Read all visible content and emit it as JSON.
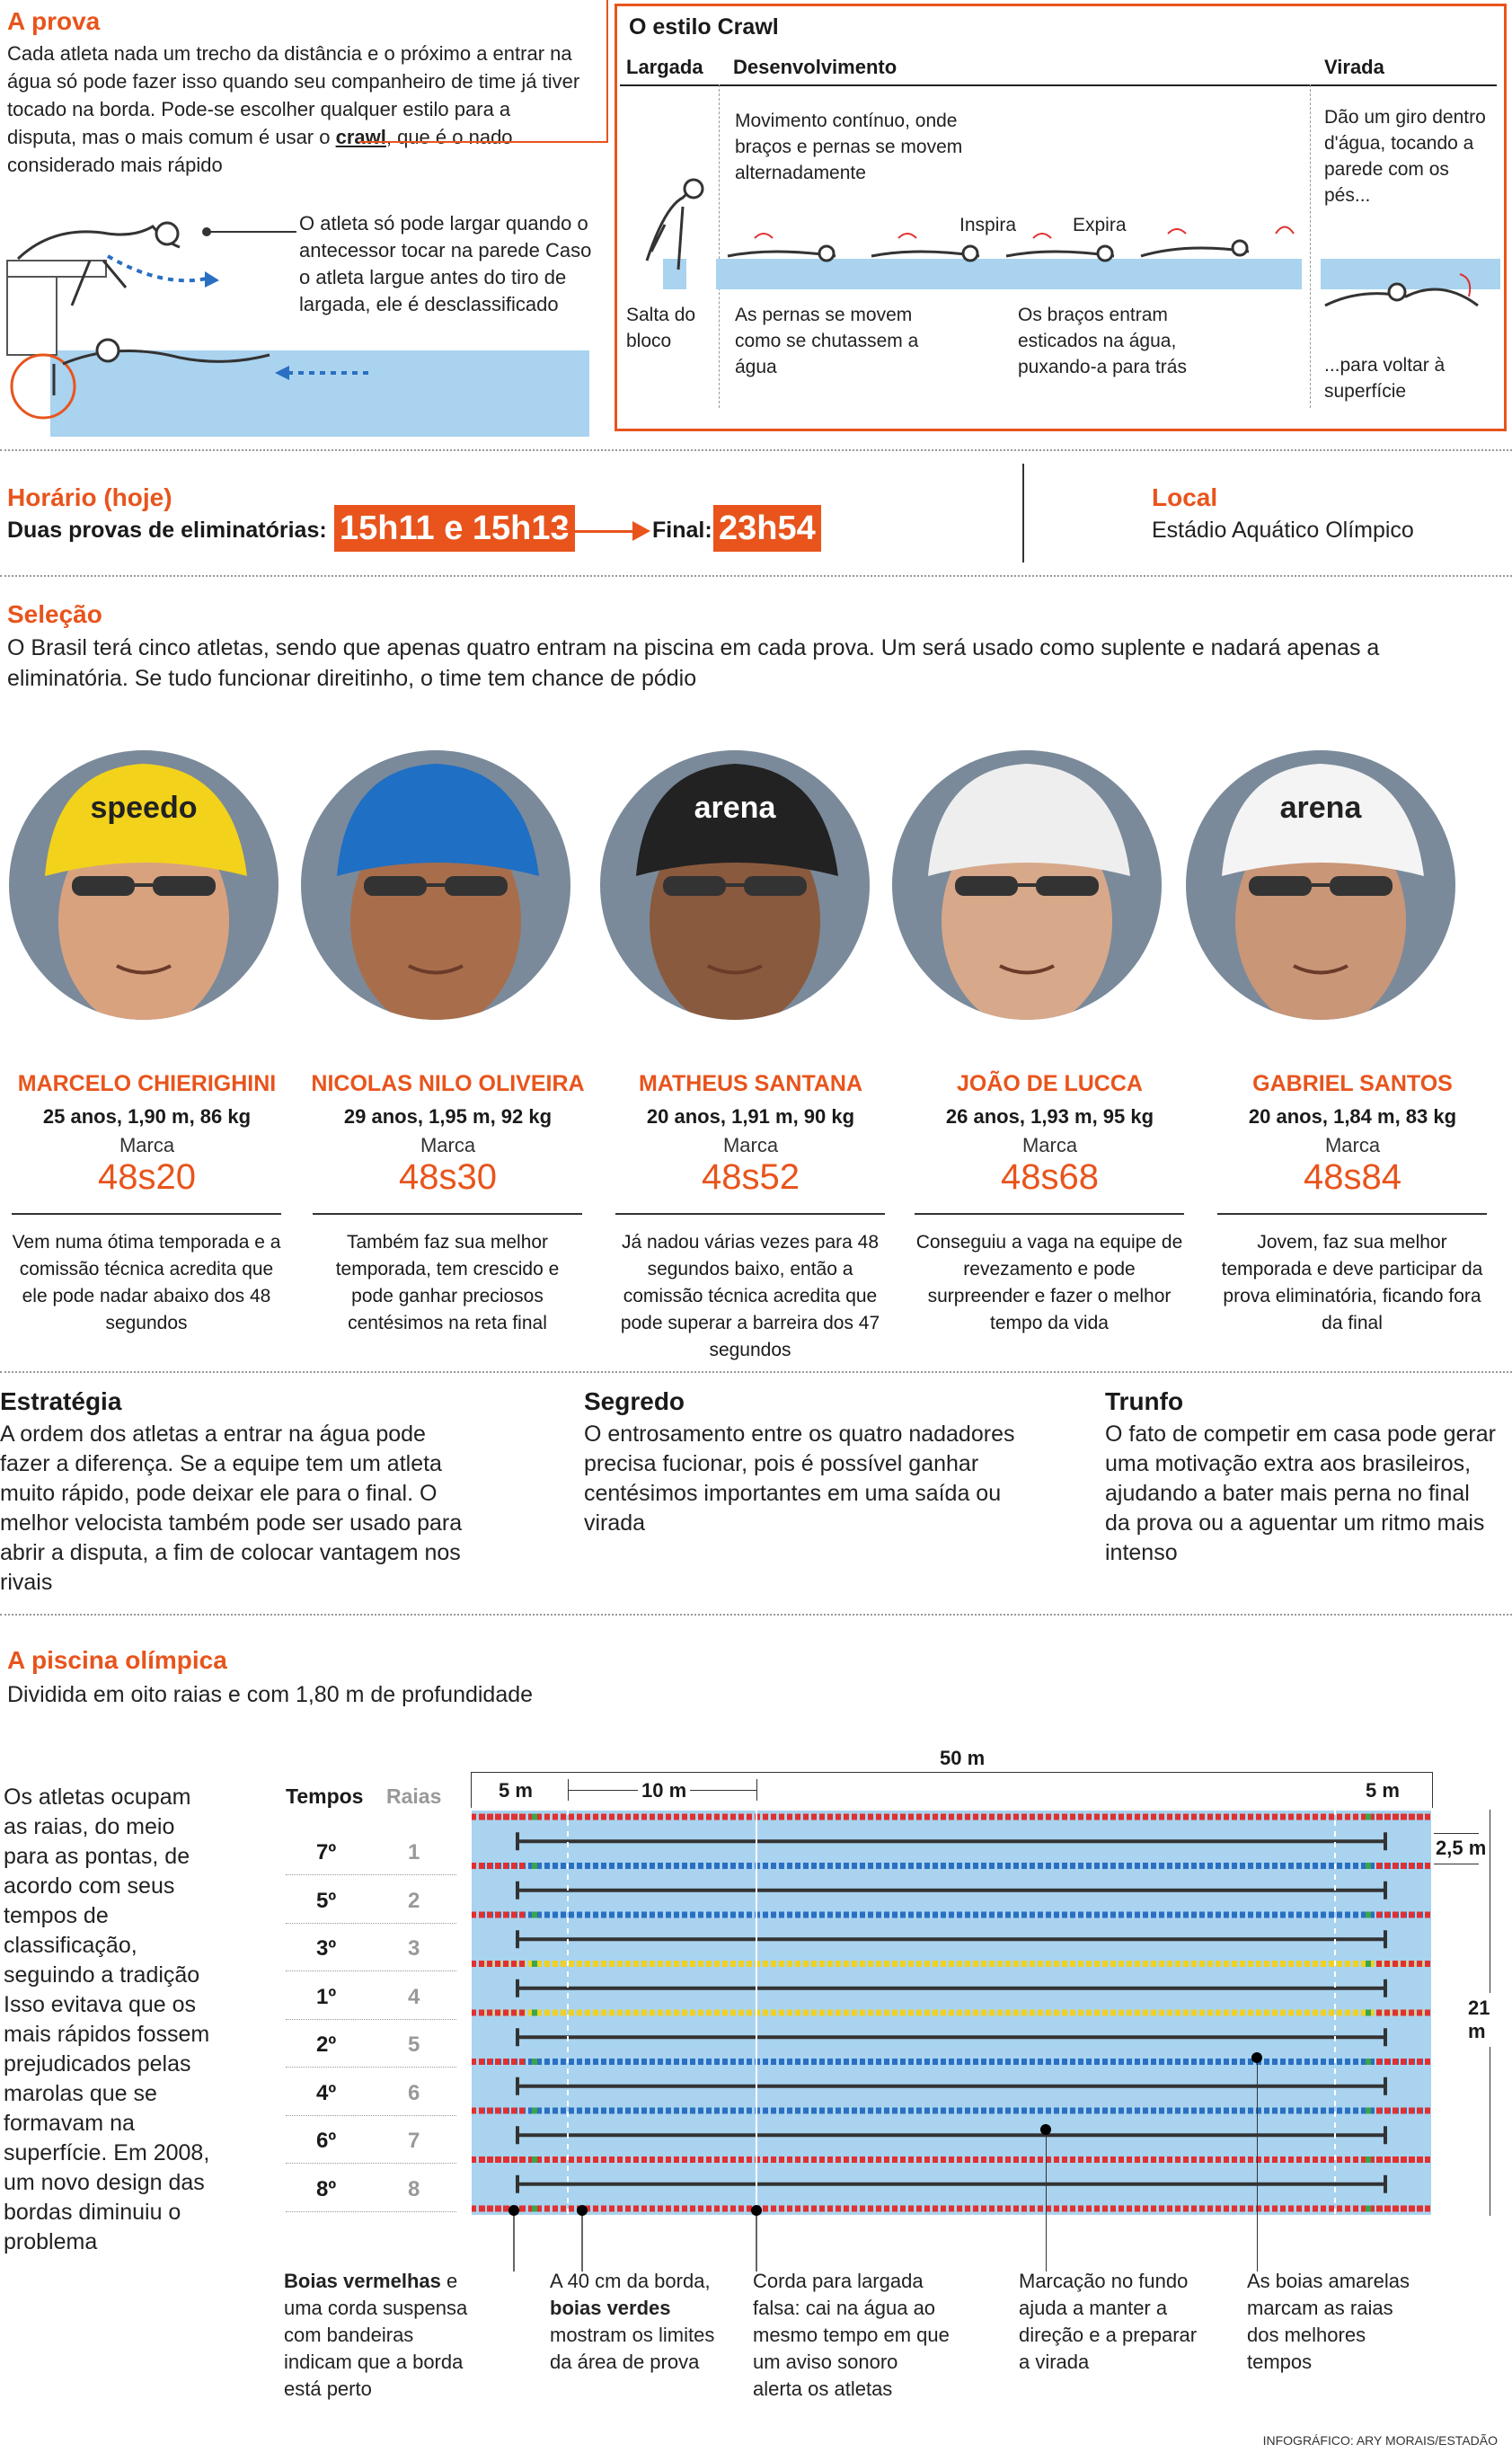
{
  "prova": {
    "title": "A prova",
    "text_a": "Cada atleta nada um trecho da distância e o próximo a entrar na água só pode fazer isso quando seu companheiro de time já tiver tocado na borda. Pode-se escolher qualquer estilo para a disputa, mas o mais comum é usar o ",
    "text_bold": "crawl",
    "text_b": ", que é o nado considerado mais rápido",
    "caption": "O atleta só pode largar quando o antecessor tocar na parede Caso o atleta largue antes do tiro de largada, ele é desclassificado"
  },
  "crawl": {
    "title": "O estilo Crawl",
    "col_largada": "Largada",
    "col_desenvolvimento": "Desenvolvimento",
    "col_virada": "Virada",
    "movimento": "Movimento contínuo, onde braços e pernas se movem alternadamente",
    "inspira": "Inspira",
    "expira": "Expira",
    "salta": "Salta do bloco",
    "pernas": "As pernas se movem como se chutassem a água",
    "bracos": "Os braços entram esticados na água, puxando-a para trás",
    "giro": "Dão um giro dentro d'água, tocando a parede com os pés...",
    "voltar": "...para voltar à superfície"
  },
  "horario": {
    "title": "Horário (hoje)",
    "label": "Duas provas de eliminatórias:",
    "times": "15h11 e 15h13",
    "final_label": "Final:",
    "final_time": "23h54"
  },
  "local": {
    "title": "Local",
    "value": "Estádio Aquático Olímpico"
  },
  "selecao": {
    "title": "Seleção",
    "text": "O Brasil terá cinco atletas, sendo que apenas quatro entram na piscina em cada prova. Um será usado como suplente e nadará apenas a eliminatória. Se tudo funcionar direitinho, o time tem chance de pódio"
  },
  "athletes": [
    {
      "name": "MARCELO CHIERIGHINI",
      "stats": "25 anos, 1,90 m, 86 kg",
      "marca": "Marca",
      "time": "48s20",
      "desc": "Vem numa ótima temporada e a comissão técnica acredita que ele pode nadar abaixo dos 48 segundos",
      "cap": "speedo",
      "capcolor": "#f2d21b",
      "skin": "#d9a27f"
    },
    {
      "name": "NICOLAS NILO OLIVEIRA",
      "stats": "29 anos, 1,95 m, 92 kg",
      "marca": "Marca",
      "time": "48s30",
      "desc": "Também faz sua melhor temporada, tem crescido e pode ganhar preciosos centésimos na reta final",
      "cap": "",
      "capcolor": "#1f6fc4",
      "skin": "#a86e4c"
    },
    {
      "name": "MATHEUS SANTANA",
      "stats": "20 anos, 1,91 m, 90 kg",
      "marca": "Marca",
      "time": "48s52",
      "desc": "Já nadou várias vezes para 48 segundos baixo, então a comissão técnica acredita que pode superar a barreira dos 47 segundos",
      "cap": "arena",
      "capcolor": "#222222",
      "skin": "#8a5a3e"
    },
    {
      "name": "JOÃO DE LUCCA",
      "stats": "26 anos, 1,93 m, 95 kg",
      "marca": "Marca",
      "time": "48s68",
      "desc": "Conseguiu a vaga na equipe de revezamento e pode surpreender e fazer o melhor tempo da vida",
      "cap": "",
      "capcolor": "#eeeeee",
      "skin": "#d8a88a"
    },
    {
      "name": "GABRIEL SANTOS",
      "stats": "20 anos, 1,84 m, 83 kg",
      "marca": "Marca",
      "time": "48s84",
      "desc": "Jovem, faz sua melhor temporada e deve participar da prova eliminatória, ficando fora da final",
      "cap": "arena",
      "capcolor": "#f4f4f4",
      "skin": "#c99678"
    }
  ],
  "estrategia": {
    "title": "Estratégia",
    "text": "A ordem dos atletas a entrar na água pode fazer a diferença. Se a equipe tem um atleta muito rápido, pode deixar ele para o final. O melhor velocista também pode ser usado para abrir a disputa, a fim de colocar vantagem nos rivais"
  },
  "segredo": {
    "title": "Segredo",
    "text": "O entrosamento entre os quatro nadadores precisa fucionar, pois é possível ganhar centésimos importantes em uma saída ou virada"
  },
  "trunfo": {
    "title": "Trunfo",
    "text": "O fato de competir em casa pode gerar uma motivação extra aos brasileiros, ajudando a bater mais perna no final da prova ou a aguentar um ritmo mais intenso"
  },
  "piscina": {
    "title": "A piscina olímpica",
    "subtitle": "Dividida em oito raias e com 1,80 m de profundidade",
    "side_text": "Os atletas ocupam as raias, do meio para as pontas, de acordo com seus tempos de classificação, seguindo a tradição Isso evitava que os mais rápidos fossem prejudicados pelas marolas que se formavam na superfície. Em 2008, um novo design das bordas diminuiu o problema",
    "col_tempos": "Tempos",
    "col_raias": "Raias",
    "rows": [
      {
        "tempo": "7º",
        "raia": "1"
      },
      {
        "tempo": "5º",
        "raia": "2"
      },
      {
        "tempo": "3º",
        "raia": "3"
      },
      {
        "tempo": "1º",
        "raia": "4"
      },
      {
        "tempo": "2º",
        "raia": "5"
      },
      {
        "tempo": "4º",
        "raia": "6"
      },
      {
        "tempo": "6º",
        "raia": "7"
      },
      {
        "tempo": "8º",
        "raia": "8"
      }
    ],
    "dim_50": "50 m",
    "dim_5a": "5 m",
    "dim_10": "10 m",
    "dim_5b": "5 m",
    "dim_25": "2,5 m",
    "dim_21": "21 m",
    "note1_bold": "Boias vermelhas",
    "note1": " e uma corda suspensa com bandeiras indicam que a borda está perto",
    "note2_a": "A 40 cm da borda, ",
    "note2_bold": "boias verdes",
    "note2_b": " mostram os limites da área de prova",
    "note3": "Corda para largada falsa: cai na água ao mesmo tempo em que um aviso sonoro alerta os atletas",
    "note4": "Marcação no fundo ajuda a manter a direção e a preparar a virada",
    "note5": "As boias amarelas marcam as raias dos melhores tempos"
  },
  "credit": "INFOGRÁFICO: ARY MORAIS/ESTADÃO",
  "colors": {
    "accent": "#e8541c",
    "pool": "#a9d3ef",
    "red": "#e03030",
    "blue": "#2a6fc2",
    "yellow": "#f0d020",
    "green": "#3aa64a"
  }
}
